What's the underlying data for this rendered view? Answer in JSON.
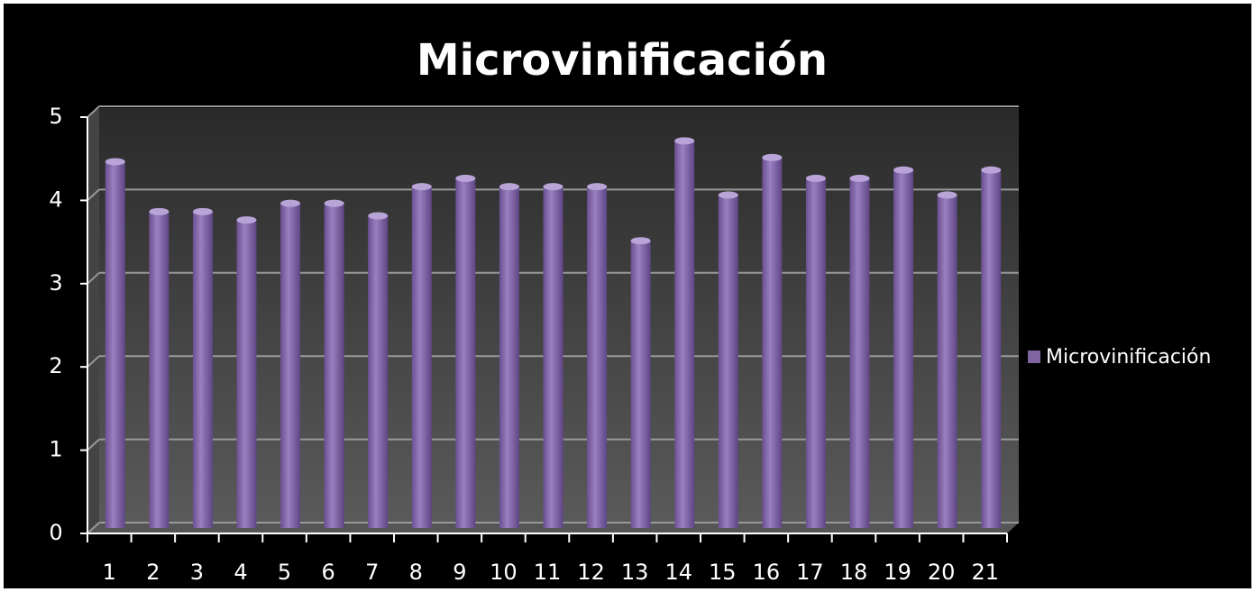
{
  "chart_data": {
    "type": "bar",
    "title": "Microvinificación",
    "categories": [
      "1",
      "2",
      "3",
      "4",
      "5",
      "6",
      "7",
      "8",
      "9",
      "10",
      "11",
      "12",
      "13",
      "14",
      "15",
      "16",
      "17",
      "18",
      "19",
      "20",
      "21"
    ],
    "series": [
      {
        "name": "Microvinificación",
        "color": "#8064a2",
        "values": [
          4.4,
          3.8,
          3.8,
          3.7,
          3.9,
          3.9,
          3.75,
          4.1,
          4.2,
          4.1,
          4.1,
          4.1,
          3.45,
          4.65,
          4.0,
          4.45,
          4.2,
          4.2,
          4.3,
          4.0,
          4.3
        ]
      }
    ],
    "ylim": [
      0,
      5
    ],
    "yticks": [
      0,
      1,
      2,
      3,
      4,
      5
    ],
    "grid": true,
    "legend": "right"
  }
}
